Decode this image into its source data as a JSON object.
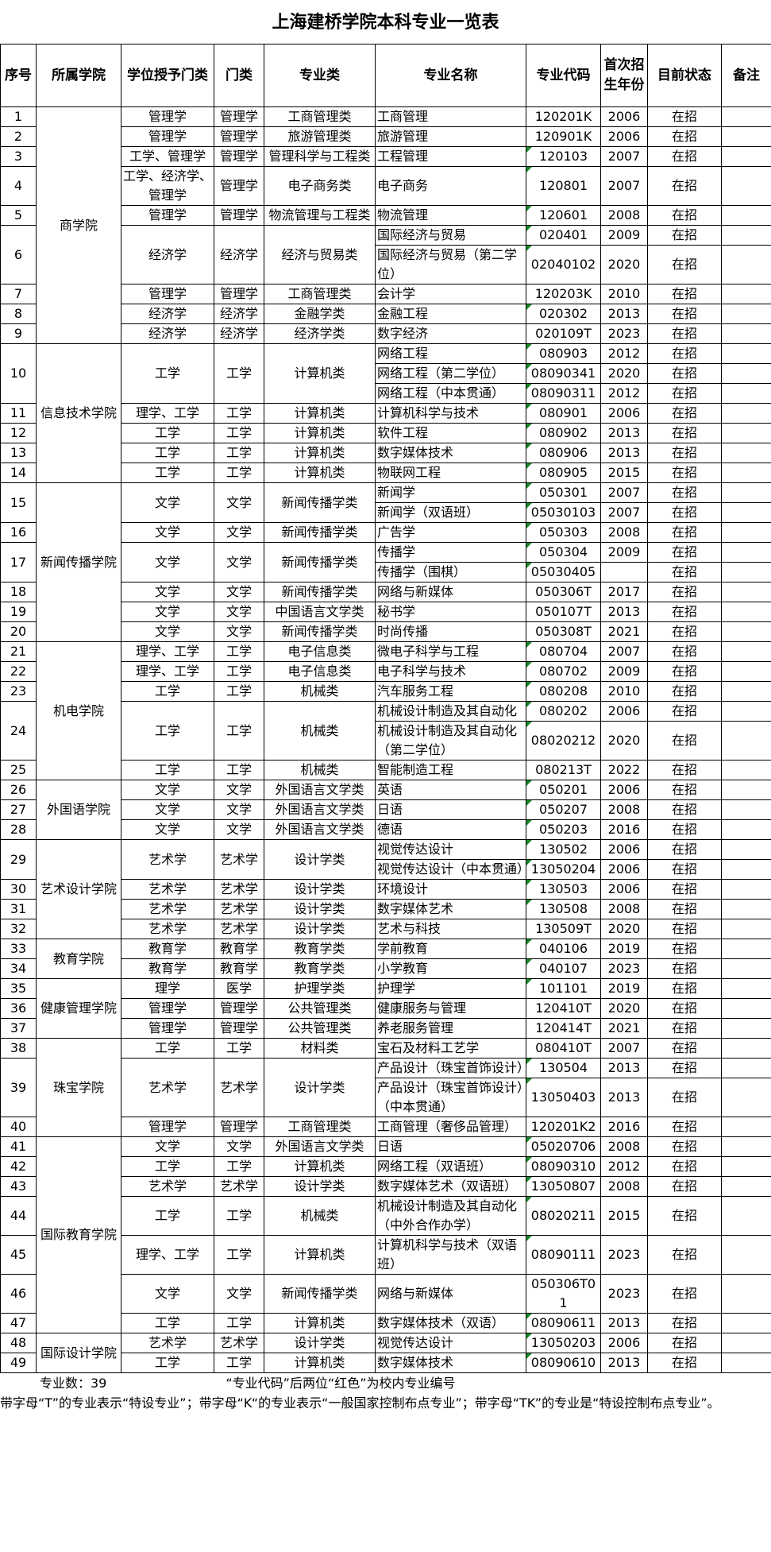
{
  "title": "上海建桥学院本科专业一览表",
  "headers": [
    "序号",
    "所属学院",
    "学位授予门类",
    "门类",
    "专业类",
    "专业名称",
    "专业代码",
    "首次招生年份",
    "目前状态",
    "备注"
  ],
  "colleges": [
    {
      "name": "商学院",
      "programs": [
        {
          "seq": "1",
          "degree": "管理学",
          "category": "管理学",
          "cls": "工商管理类",
          "majors": [
            {
              "name": "工商管理",
              "code": "120201K",
              "year": "2006",
              "status": "在招"
            }
          ]
        },
        {
          "seq": "2",
          "degree": "管理学",
          "category": "管理学",
          "cls": "旅游管理类",
          "majors": [
            {
              "name": "旅游管理",
              "code": "120901K",
              "year": "2006",
              "status": "在招"
            }
          ]
        },
        {
          "seq": "3",
          "degree": "工学、管理学",
          "category": "管理学",
          "cls": "管理科学与工程类",
          "majors": [
            {
              "name": "工程管理",
              "code": "120103",
              "year": "2007",
              "status": "在招"
            }
          ]
        },
        {
          "seq": "4",
          "degree": "工学、经济学、管理学",
          "category": "管理学",
          "cls": "电子商务类",
          "majors": [
            {
              "name": "电子商务",
              "code": "120801",
              "year": "2007",
              "status": "在招"
            }
          ]
        },
        {
          "seq": "5",
          "degree": "管理学",
          "category": "管理学",
          "cls": "物流管理与工程类",
          "majors": [
            {
              "name": "物流管理",
              "code": "120601",
              "year": "2008",
              "status": "在招"
            }
          ]
        },
        {
          "seq": "6",
          "degree": "经济学",
          "category": "经济学",
          "cls": "经济与贸易类",
          "majors": [
            {
              "name": "国际经济与贸易",
              "code": "020401",
              "year": "2009",
              "status": "在招"
            },
            {
              "name": "国际经济与贸易（第二学位）",
              "code": "02040102",
              "year": "2020",
              "status": "在招"
            }
          ]
        },
        {
          "seq": "7",
          "degree": "管理学",
          "category": "管理学",
          "cls": "工商管理类",
          "majors": [
            {
              "name": "会计学",
              "code": "120203K",
              "year": "2010",
              "status": "在招"
            }
          ]
        },
        {
          "seq": "8",
          "degree": "经济学",
          "category": "经济学",
          "cls": "金融学类",
          "majors": [
            {
              "name": "金融工程",
              "code": "020302",
              "year": "2013",
              "status": "在招"
            }
          ]
        },
        {
          "seq": "9",
          "degree": "经济学",
          "category": "经济学",
          "cls": "经济学类",
          "majors": [
            {
              "name": "数字经济",
              "code": "020109T",
              "year": "2023",
              "status": "在招"
            }
          ]
        }
      ]
    },
    {
      "name": "信息技术学院",
      "programs": [
        {
          "seq": "10",
          "degree": "工学",
          "category": "工学",
          "cls": "计算机类",
          "majors": [
            {
              "name": "网络工程",
              "code": "080903",
              "year": "2012",
              "status": "在招"
            },
            {
              "name": "网络工程（第二学位）",
              "code": "08090341",
              "year": "2020",
              "status": "在招"
            },
            {
              "name": "网络工程（中本贯通）",
              "code": "08090311",
              "year": "2012",
              "status": "在招"
            }
          ]
        },
        {
          "seq": "11",
          "degree": "理学、工学",
          "category": "工学",
          "cls": "计算机类",
          "majors": [
            {
              "name": "计算机科学与技术",
              "code": "080901",
              "year": "2006",
              "status": "在招"
            }
          ]
        },
        {
          "seq": "12",
          "degree": "工学",
          "category": "工学",
          "cls": "计算机类",
          "majors": [
            {
              "name": "软件工程",
              "code": "080902",
              "year": "2013",
              "status": "在招"
            }
          ]
        },
        {
          "seq": "13",
          "degree": "工学",
          "category": "工学",
          "cls": "计算机类",
          "majors": [
            {
              "name": "数字媒体技术",
              "code": "080906",
              "year": "2013",
              "status": "在招"
            }
          ]
        },
        {
          "seq": "14",
          "degree": "工学",
          "category": "工学",
          "cls": "计算机类",
          "majors": [
            {
              "name": "物联网工程",
              "code": "080905",
              "year": "2015",
              "status": "在招"
            }
          ]
        }
      ]
    },
    {
      "name": "新闻传播学院",
      "programs": [
        {
          "seq": "15",
          "degree": "文学",
          "category": "文学",
          "cls": "新闻传播学类",
          "majors": [
            {
              "name": "新闻学",
              "code": "050301",
              "year": "2007",
              "status": "在招"
            },
            {
              "name": "新闻学（双语班）",
              "code": "05030103",
              "year": "2007",
              "status": "在招"
            }
          ]
        },
        {
          "seq": "16",
          "degree": "文学",
          "category": "文学",
          "cls": "新闻传播学类",
          "majors": [
            {
              "name": "广告学",
              "code": "050303",
              "year": "2008",
              "status": "在招"
            }
          ]
        },
        {
          "seq": "17",
          "degree": "文学",
          "category": "文学",
          "cls": "新闻传播学类",
          "majors": [
            {
              "name": "传播学",
              "code": "050304",
              "year": "2009",
              "status": "在招"
            },
            {
              "name": "传播学（围棋）",
              "code": "05030405",
              "year": "",
              "status": "在招"
            }
          ]
        },
        {
          "seq": "18",
          "degree": "文学",
          "category": "文学",
          "cls": "新闻传播学类",
          "majors": [
            {
              "name": "网络与新媒体",
              "code": "050306T",
              "year": "2017",
              "status": "在招"
            }
          ]
        },
        {
          "seq": "19",
          "degree": "文学",
          "category": "文学",
          "cls": "中国语言文学类",
          "majors": [
            {
              "name": "秘书学",
              "code": "050107T",
              "year": "2013",
              "status": "在招"
            }
          ]
        },
        {
          "seq": "20",
          "degree": "文学",
          "category": "文学",
          "cls": "新闻传播学类",
          "majors": [
            {
              "name": "时尚传播",
              "code": "050308T",
              "year": "2021",
              "status": "在招"
            }
          ]
        }
      ]
    },
    {
      "name": "机电学院",
      "programs": [
        {
          "seq": "21",
          "degree": "理学、工学",
          "category": "工学",
          "cls": "电子信息类",
          "majors": [
            {
              "name": "微电子科学与工程",
              "code": "080704",
              "year": "2007",
              "status": "在招"
            }
          ]
        },
        {
          "seq": "22",
          "degree": "理学、工学",
          "category": "工学",
          "cls": "电子信息类",
          "majors": [
            {
              "name": "电子科学与技术",
              "code": "080702",
              "year": "2009",
              "status": "在招"
            }
          ]
        },
        {
          "seq": "23",
          "degree": "工学",
          "category": "工学",
          "cls": "机械类",
          "majors": [
            {
              "name": "汽车服务工程",
              "code": "080208",
              "year": "2010",
              "status": "在招"
            }
          ]
        },
        {
          "seq": "24",
          "degree": "工学",
          "category": "工学",
          "cls": "机械类",
          "majors": [
            {
              "name": "机械设计制造及其自动化",
              "code": "080202",
              "year": "2006",
              "status": "在招"
            },
            {
              "name": "机械设计制造及其自动化（第二学位）",
              "code": "08020212",
              "year": "2020",
              "status": "在招"
            }
          ]
        },
        {
          "seq": "25",
          "degree": "工学",
          "category": "工学",
          "cls": "机械类",
          "majors": [
            {
              "name": "智能制造工程",
              "code": "080213T",
              "year": "2022",
              "status": "在招"
            }
          ]
        }
      ]
    },
    {
      "name": "外国语学院",
      "programs": [
        {
          "seq": "26",
          "degree": "文学",
          "category": "文学",
          "cls": "外国语言文学类",
          "majors": [
            {
              "name": "英语",
              "code": "050201",
              "year": "2006",
              "status": "在招"
            }
          ]
        },
        {
          "seq": "27",
          "degree": "文学",
          "category": "文学",
          "cls": "外国语言文学类",
          "majors": [
            {
              "name": "日语",
              "code": "050207",
              "year": "2008",
              "status": "在招"
            }
          ]
        },
        {
          "seq": "28",
          "degree": "文学",
          "category": "文学",
          "cls": "外国语言文学类",
          "majors": [
            {
              "name": "德语",
              "code": "050203",
              "year": "2016",
              "status": "在招"
            }
          ]
        }
      ]
    },
    {
      "name": "艺术设计学院",
      "programs": [
        {
          "seq": "29",
          "degree": "艺术学",
          "category": "艺术学",
          "cls": "设计学类",
          "majors": [
            {
              "name": "视觉传达设计",
              "code": "130502",
              "year": "2006",
              "status": "在招"
            },
            {
              "name": "视觉传达设计（中本贯通）",
              "code": "13050204",
              "year": "2006",
              "status": "在招"
            }
          ]
        },
        {
          "seq": "30",
          "degree": "艺术学",
          "category": "艺术学",
          "cls": "设计学类",
          "majors": [
            {
              "name": "环境设计",
              "code": "130503",
              "year": "2006",
              "status": "在招"
            }
          ]
        },
        {
          "seq": "31",
          "degree": "艺术学",
          "category": "艺术学",
          "cls": "设计学类",
          "majors": [
            {
              "name": "数字媒体艺术",
              "code": "130508",
              "year": "2008",
              "status": "在招"
            }
          ]
        },
        {
          "seq": "32",
          "degree": "艺术学",
          "category": "艺术学",
          "cls": "设计学类",
          "majors": [
            {
              "name": "艺术与科技",
              "code": "130509T",
              "year": "2020",
              "status": "在招"
            }
          ]
        }
      ]
    },
    {
      "name": "教育学院",
      "programs": [
        {
          "seq": "33",
          "degree": "教育学",
          "category": "教育学",
          "cls": "教育学类",
          "majors": [
            {
              "name": "学前教育",
              "code": "040106",
              "year": "2019",
              "status": "在招"
            }
          ]
        },
        {
          "seq": "34",
          "degree": "教育学",
          "category": "教育学",
          "cls": "教育学类",
          "majors": [
            {
              "name": "小学教育",
              "code": "040107",
              "year": "2023",
              "status": "在招"
            }
          ]
        }
      ]
    },
    {
      "name": "健康管理学院",
      "programs": [
        {
          "seq": "35",
          "degree": "理学",
          "category": "医学",
          "cls": "护理学类",
          "majors": [
            {
              "name": "护理学",
              "code": "101101",
              "year": "2019",
              "status": "在招"
            }
          ]
        },
        {
          "seq": "36",
          "degree": "管理学",
          "category": "管理学",
          "cls": "公共管理类",
          "majors": [
            {
              "name": "健康服务与管理",
              "code": "120410T",
              "year": "2020",
              "status": "在招"
            }
          ]
        },
        {
          "seq": "37",
          "degree": "管理学",
          "category": "管理学",
          "cls": "公共管理类",
          "majors": [
            {
              "name": "养老服务管理",
              "code": "120414T",
              "year": "2021",
              "status": "在招"
            }
          ]
        }
      ]
    },
    {
      "name": "珠宝学院",
      "programs": [
        {
          "seq": "38",
          "degree": "工学",
          "category": "工学",
          "cls": "材料类",
          "majors": [
            {
              "name": "宝石及材料工艺学",
              "code": "080410T",
              "year": "2007",
              "status": "在招"
            }
          ]
        },
        {
          "seq": "39",
          "degree": "艺术学",
          "category": "艺术学",
          "cls": "设计学类",
          "majors": [
            {
              "name": "产品设计（珠宝首饰设计）",
              "code": "130504",
              "year": "2013",
              "status": "在招"
            },
            {
              "name": "产品设计（珠宝首饰设计）（中本贯通）",
              "code": "13050403",
              "year": "2013",
              "status": "在招"
            }
          ]
        },
        {
          "seq": "40",
          "degree": "管理学",
          "category": "管理学",
          "cls": "工商管理类",
          "majors": [
            {
              "name": "工商管理（奢侈品管理）",
              "code": "120201K2",
              "year": "2016",
              "status": "在招"
            }
          ]
        }
      ]
    },
    {
      "name": "国际教育学院",
      "programs": [
        {
          "seq": "41",
          "degree": "文学",
          "category": "文学",
          "cls": "外国语言文学类",
          "majors": [
            {
              "name": "日语",
              "code": "05020706",
              "year": "2008",
              "status": "在招"
            }
          ]
        },
        {
          "seq": "42",
          "degree": "工学",
          "category": "工学",
          "cls": "计算机类",
          "majors": [
            {
              "name": "网络工程（双语班）",
              "code": "08090310",
              "year": "2012",
              "status": "在招"
            }
          ]
        },
        {
          "seq": "43",
          "degree": "艺术学",
          "category": "艺术学",
          "cls": "设计学类",
          "majors": [
            {
              "name": "数字媒体艺术（双语班）",
              "code": "13050807",
              "year": "2008",
              "status": "在招"
            }
          ]
        },
        {
          "seq": "44",
          "degree": "工学",
          "category": "工学",
          "cls": "机械类",
          "majors": [
            {
              "name": "机械设计制造及其自动化（中外合作办学）",
              "code": "08020211",
              "year": "2015",
              "status": "在招"
            }
          ]
        },
        {
          "seq": "45",
          "degree": "理学、工学",
          "category": "工学",
          "cls": "计算机类",
          "majors": [
            {
              "name": "计算机科学与技术（双语班）",
              "code": "08090111",
              "year": "2023",
              "status": "在招"
            }
          ]
        },
        {
          "seq": "46",
          "degree": "文学",
          "category": "文学",
          "cls": "新闻传播学类",
          "majors": [
            {
              "name": "网络与新媒体",
              "code": "050306T01",
              "year": "2023",
              "status": "在招"
            }
          ]
        },
        {
          "seq": "47",
          "degree": "工学",
          "category": "工学",
          "cls": "计算机类",
          "majors": [
            {
              "name": "数字媒体技术（双语）",
              "code": "08090611",
              "year": "2013",
              "status": "在招"
            }
          ]
        }
      ]
    },
    {
      "name": "国际设计学院",
      "programs": [
        {
          "seq": "48",
          "degree": "艺术学",
          "category": "艺术学",
          "cls": "设计学类",
          "majors": [
            {
              "name": "视觉传达设计",
              "code": "13050203",
              "year": "2006",
              "status": "在招"
            }
          ]
        },
        {
          "seq": "49",
          "degree": "工学",
          "category": "工学",
          "cls": "计算机类",
          "majors": [
            {
              "name": "数字媒体技术",
              "code": "08090610",
              "year": "2013",
              "status": "在招"
            }
          ]
        }
      ]
    }
  ],
  "footer": {
    "count": "专业数：39",
    "code_note": "“专业代码”后两位“红色”为校内专业编号",
    "legend": "带字母“T”的专业表示“特设专业”；带字母“K“的专业表示“一般国家控制布点专业”；带字母“TK”的专业是“特设控制布点专业”。"
  },
  "colors": {
    "text_marker": "#1a8a2a",
    "border": "#000000"
  }
}
